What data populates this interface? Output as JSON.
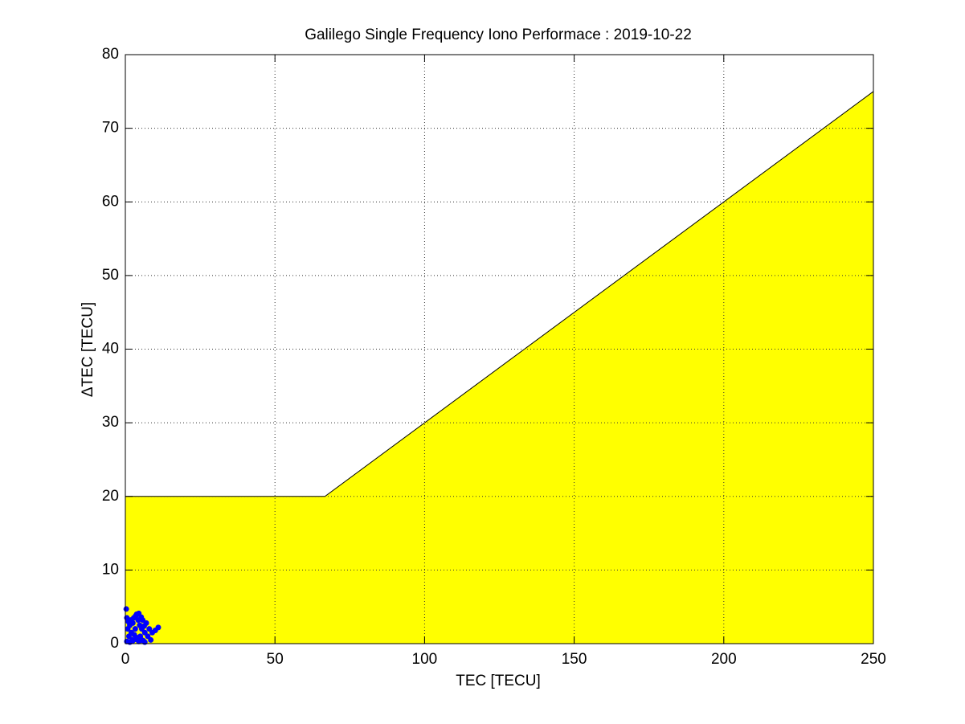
{
  "chart_data": {
    "type": "scatter",
    "title": "Galilego Single Frequency Iono Performace : 2019-10-22",
    "x_label": "TEC [TECU]",
    "y_label": "ΔTEC [TECU]",
    "xlim": [
      0,
      250
    ],
    "ylim": [
      0,
      80
    ],
    "xticks": [
      0,
      50,
      100,
      150,
      200,
      250
    ],
    "yticks": [
      0,
      10,
      20,
      30,
      40,
      50,
      60,
      70,
      80
    ],
    "grid": true,
    "series": [
      {
        "type": "area",
        "color": "#ffff00",
        "x": [
          0,
          66.7,
          250
        ],
        "values": [
          20,
          20,
          75
        ]
      },
      {
        "type": "scatter",
        "color": "#0000ff",
        "x": [
          0.3,
          0.5,
          0.8,
          1.0,
          1.2,
          1.5,
          1.8,
          2.0,
          2.3,
          2.5,
          2.8,
          3.0,
          3.3,
          3.5,
          3.8,
          4.0,
          4.3,
          4.5,
          4.8,
          5.0,
          5.3,
          5.5,
          5.8,
          6.0,
          6.3,
          6.5,
          7.0,
          7.5,
          8.0,
          8.5,
          9.0,
          10.0,
          11.0,
          0.5,
          1.5,
          2.5,
          3.5,
          4.5,
          5.5,
          6.5
        ],
        "values": [
          4.7,
          3.5,
          2.0,
          3.0,
          1.0,
          2.5,
          3.2,
          1.5,
          0.5,
          2.8,
          3.5,
          1.2,
          2.0,
          3.8,
          4.0,
          0.8,
          3.2,
          4.1,
          2.5,
          1.0,
          3.6,
          2.0,
          3.2,
          0.4,
          2.4,
          1.5,
          2.8,
          1.0,
          2.0,
          0.5,
          1.5,
          1.8,
          2.2,
          0.3,
          0.2,
          0.4,
          0.6,
          0.3,
          0.5,
          0.2
        ]
      }
    ]
  }
}
